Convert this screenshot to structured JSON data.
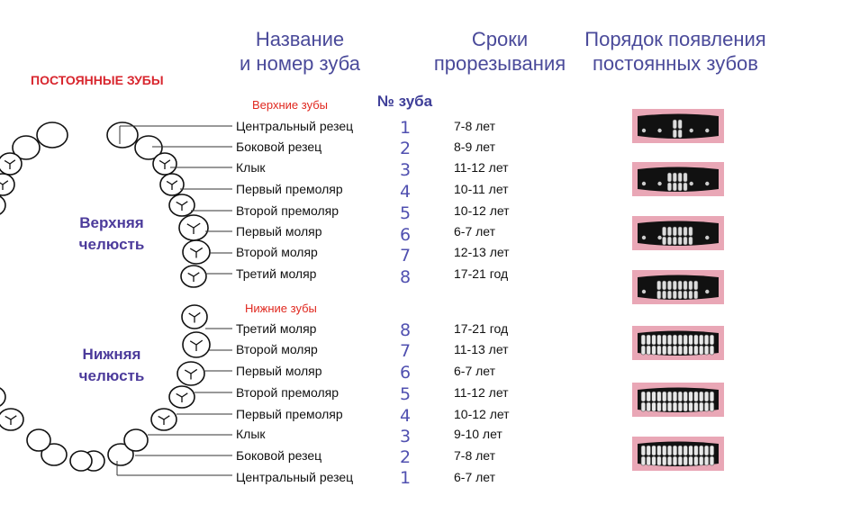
{
  "headers": {
    "name_line1": "Название",
    "name_line2": "и номер зуба",
    "eruption_line1": "Сроки",
    "eruption_line2": "прорезывания",
    "order_line1": "Порядок появления",
    "order_line2": "постоянных зубов"
  },
  "permanent_title": "ПОСТОЯННЫЕ ЗУБЫ",
  "upper_section": "Верхние зубы",
  "lower_section": "Нижние зубы",
  "number_header": "№ зуба",
  "upper_jaw_line1": "Верхняя",
  "upper_jaw_line2": "челюсть",
  "lower_jaw_line1": "Нижняя",
  "lower_jaw_line2": "челюсть",
  "upper_teeth": [
    {
      "name": "Центральный резец",
      "num": "1",
      "age": "7-8 лет"
    },
    {
      "name": "Боковой резец",
      "num": "2",
      "age": "8-9 лет"
    },
    {
      "name": "Клык",
      "num": "3",
      "age": "11-12 лет"
    },
    {
      "name": "Первый премоляр",
      "num": "4",
      "age": "10-11 лет"
    },
    {
      "name": "Второй премоляр",
      "num": "5",
      "age": "10-12 лет"
    },
    {
      "name": "Первый моляр",
      "num": "6",
      "age": "6-7 лет"
    },
    {
      "name": "Второй моляр",
      "num": "7",
      "age": "12-13 лет"
    },
    {
      "name": "Третий моляр",
      "num": "8",
      "age": "17-21 год"
    }
  ],
  "lower_teeth": [
    {
      "name": "Третий моляр",
      "num": "8",
      "age": "17-21 год"
    },
    {
      "name": "Второй моляр",
      "num": "7",
      "age": "11-13 лет"
    },
    {
      "name": "Первый моляр",
      "num": "6",
      "age": "6-7 лет"
    },
    {
      "name": "Второй премоляр",
      "num": "5",
      "age": "11-12 лет"
    },
    {
      "name": "Первый премоляр",
      "num": "4",
      "age": "10-12 лет"
    },
    {
      "name": "Клык",
      "num": "3",
      "age": "9-10 лет"
    },
    {
      "name": "Боковой резец",
      "num": "2",
      "age": "7-8 лет"
    },
    {
      "name": "Центральный резец",
      "num": "1",
      "age": "6-7 лет"
    }
  ],
  "stages": [
    {
      "teeth_fraction": 0.14
    },
    {
      "teeth_fraction": 0.29
    },
    {
      "teeth_fraction": 0.43
    },
    {
      "teeth_fraction": 0.57
    },
    {
      "teeth_fraction": 0.71
    },
    {
      "teeth_fraction": 0.86
    },
    {
      "teeth_fraction": 1.0
    }
  ],
  "colors": {
    "header_blue": "#4a4a9a",
    "title_red": "#d8262e",
    "gum_pink": "#e9a7b6",
    "mouth_black": "#111111"
  }
}
